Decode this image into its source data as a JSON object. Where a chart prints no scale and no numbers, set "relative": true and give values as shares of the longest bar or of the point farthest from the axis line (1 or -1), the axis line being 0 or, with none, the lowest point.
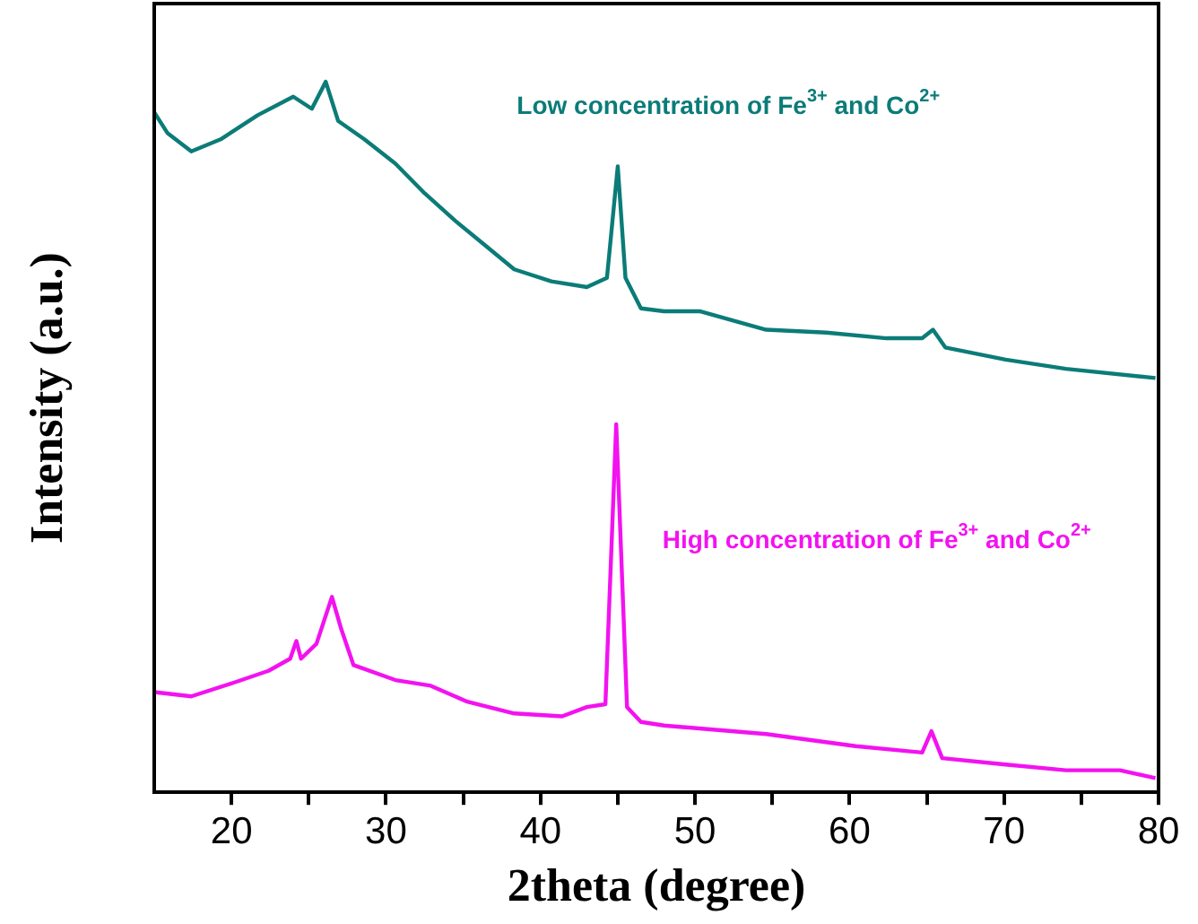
{
  "chart_data": {
    "type": "line",
    "xlabel": "2theta (degree)",
    "ylabel": "Intensity (a.u.)",
    "relative": true,
    "grid": false,
    "legend": false,
    "marker": "none",
    "xlim": [
      15,
      80
    ],
    "xticks": [
      20,
      {
        "value": 25,
        "label": null
      },
      30,
      {
        "value": 35,
        "label": null
      },
      40,
      {
        "value": 45,
        "label": null
      },
      50,
      {
        "value": 55,
        "label": null
      },
      60,
      {
        "value": 65,
        "label": null
      },
      70,
      {
        "value": 75,
        "label": null
      },
      80
    ],
    "series": [
      {
        "name": "Low concentration of Fe$^{3+}$ and Co$^{2+}$",
        "color": "#0b7c78",
        "x": [
          15,
          15.85,
          17.4,
          19.3,
          21.7,
          24.0,
          25.2,
          26.1,
          26.9,
          28.6,
          30.6,
          32.5,
          34.5,
          36.4,
          38.3,
          40.7,
          43.0,
          44.3,
          45.0,
          45.5,
          46.5,
          48.0,
          50.3,
          54.6,
          58.5,
          62.4,
          64.7,
          65.4,
          66.2,
          70.1,
          74.0,
          79.8
        ],
        "values": [
          0.957,
          0.928,
          0.902,
          0.919,
          0.953,
          0.979,
          0.962,
          1.0,
          0.945,
          0.919,
          0.885,
          0.843,
          0.804,
          0.77,
          0.736,
          0.719,
          0.711,
          0.724,
          0.881,
          0.724,
          0.681,
          0.677,
          0.677,
          0.651,
          0.647,
          0.639,
          0.639,
          0.651,
          0.626,
          0.609,
          0.596,
          0.583
        ]
      },
      {
        "name": "High concentration of Fe$^{3+}$ and Co$^{2+}$",
        "color": "#f312f0",
        "x": [
          15,
          17.4,
          20.1,
          22.4,
          23.8,
          24.2,
          24.5,
          25.5,
          26.5,
          27.1,
          27.9,
          30.6,
          32.9,
          35.2,
          38.3,
          41.4,
          43.0,
          44.2,
          44.9,
          45.6,
          46.5,
          48.0,
          54.6,
          60.4,
          64.7,
          65.3,
          66.0,
          70.1,
          74.0,
          77.5,
          79.8
        ],
        "values": [
          0.141,
          0.135,
          0.154,
          0.171,
          0.188,
          0.213,
          0.188,
          0.209,
          0.275,
          0.23,
          0.179,
          0.158,
          0.15,
          0.128,
          0.111,
          0.107,
          0.12,
          0.124,
          0.518,
          0.12,
          0.099,
          0.094,
          0.082,
          0.065,
          0.056,
          0.086,
          0.048,
          0.039,
          0.031,
          0.031,
          0.02
        ]
      }
    ]
  }
}
